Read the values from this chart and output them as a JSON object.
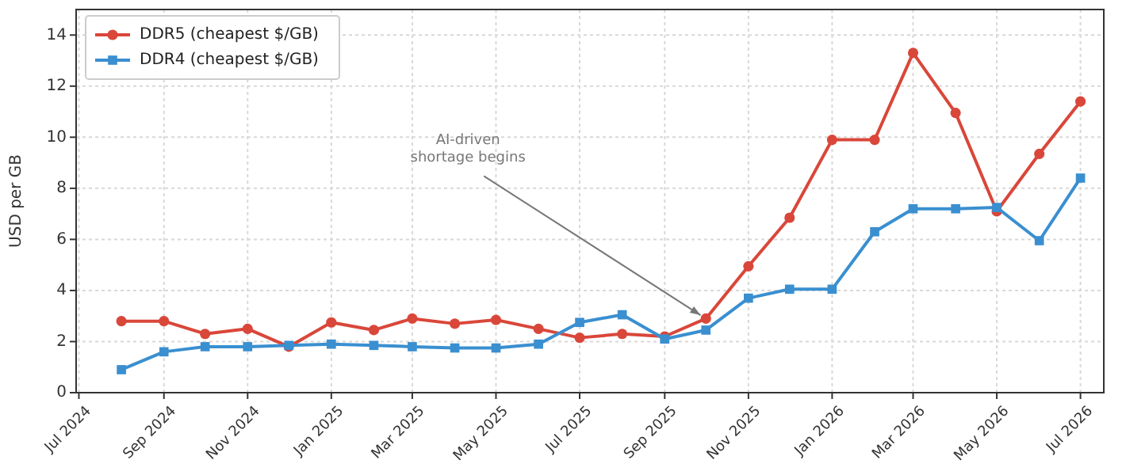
{
  "chart_data": {
    "type": "line",
    "ylabel": "USD per GB",
    "x": [
      "2024-08",
      "2024-09",
      "2024-10",
      "2024-11",
      "2024-12",
      "2025-01",
      "2025-02",
      "2025-03",
      "2025-04",
      "2025-05",
      "2025-06",
      "2025-07",
      "2025-08",
      "2025-09",
      "2025-10",
      "2025-11",
      "2025-12",
      "2026-01",
      "2026-02",
      "2026-03",
      "2026-04",
      "2026-05",
      "2026-06",
      "2026-07"
    ],
    "series": [
      {
        "name": "DDR5 (cheapest $/GB)",
        "color": "#d9473a",
        "marker": "circle",
        "values": [
          2.8,
          2.8,
          2.3,
          2.5,
          1.8,
          2.75,
          2.45,
          2.9,
          2.7,
          2.85,
          2.5,
          2.15,
          2.3,
          2.2,
          2.9,
          4.95,
          6.85,
          9.9,
          9.9,
          13.3,
          10.95,
          7.1,
          9.35,
          11.4
        ]
      },
      {
        "name": "DDR4 (cheapest $/GB)",
        "color": "#3a8fd0",
        "marker": "square",
        "values": [
          0.9,
          1.6,
          1.8,
          1.8,
          1.85,
          1.9,
          1.85,
          1.8,
          1.75,
          1.75,
          1.9,
          2.75,
          3.05,
          2.1,
          2.45,
          3.7,
          4.05,
          4.05,
          6.3,
          7.2,
          7.2,
          7.25,
          5.95,
          8.4
        ]
      }
    ],
    "xlim": [
      "2024-06-29",
      "2026-07-18"
    ],
    "xticks": [
      {
        "value": "2024-07",
        "label": "Jul 2024"
      },
      {
        "value": "2024-09",
        "label": "Sep 2024"
      },
      {
        "value": "2024-11",
        "label": "Nov 2024"
      },
      {
        "value": "2025-01",
        "label": "Jan 2025"
      },
      {
        "value": "2025-03",
        "label": "Mar 2025"
      },
      {
        "value": "2025-05",
        "label": "May 2025"
      },
      {
        "value": "2025-07",
        "label": "Jul 2025"
      },
      {
        "value": "2025-09",
        "label": "Sep 2025"
      },
      {
        "value": "2025-11",
        "label": "Nov 2025"
      },
      {
        "value": "2026-01",
        "label": "Jan 2026"
      },
      {
        "value": "2026-03",
        "label": "Mar 2026"
      },
      {
        "value": "2026-05",
        "label": "May 2026"
      },
      {
        "value": "2026-07",
        "label": "Jul 2026"
      }
    ],
    "ylim": [
      0,
      15
    ],
    "yticks": [
      0,
      2,
      4,
      6,
      8,
      10,
      12,
      14
    ],
    "grid": true,
    "legend": "top left",
    "line_style": "solid",
    "annotations": [
      {
        "text": "AI-driven shortage begins",
        "x": "2025-10",
        "y": 2.9
      }
    ]
  }
}
